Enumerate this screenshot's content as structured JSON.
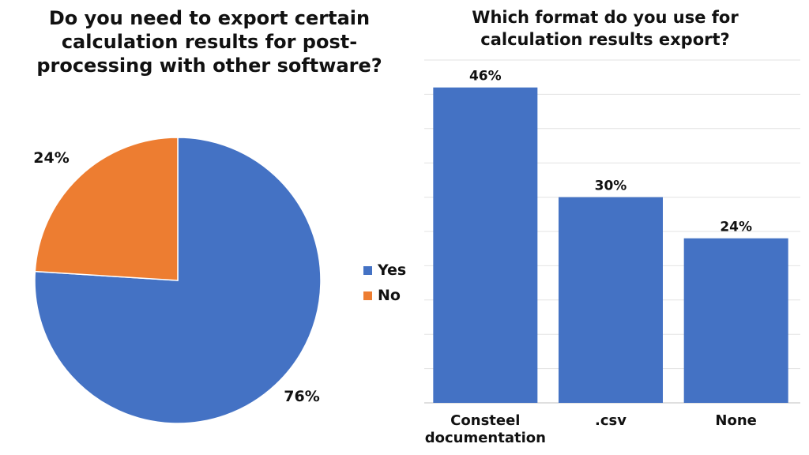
{
  "chart_data": [
    {
      "type": "pie",
      "title": "Do you need to export certain calculation results for post-processing with other software?",
      "categories": [
        "Yes",
        "No"
      ],
      "values": [
        76,
        24
      ],
      "labels": [
        "76%",
        "24%"
      ],
      "colors": [
        "#4472C4",
        "#ED7D31"
      ],
      "legend": "right"
    },
    {
      "type": "bar",
      "title": "Which format do you use for calculation results export?",
      "categories": [
        "Consteel documentation",
        ".csv",
        "None"
      ],
      "values": [
        46,
        30,
        24
      ],
      "labels": [
        "46%",
        "30%",
        "24%"
      ],
      "color": "#4472C4",
      "ylim": [
        0,
        50
      ],
      "grid": true
    }
  ]
}
